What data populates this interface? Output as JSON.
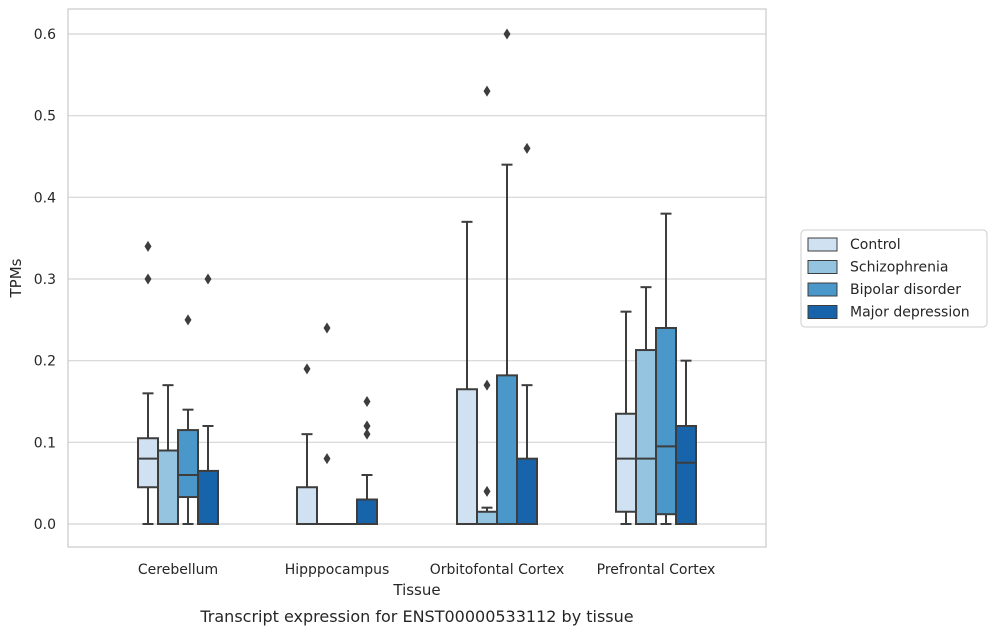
{
  "chart_data": {
    "type": "box",
    "caption": "Transcript expression for ENST00000533112 by tissue",
    "xlabel": "Tissue",
    "ylabel": "TPMs",
    "ylim": [
      -0.03,
      0.63
    ],
    "yticks": [
      "0.0",
      "0.1",
      "0.2",
      "0.3",
      "0.4",
      "0.5",
      "0.6"
    ],
    "grid": "horizontal",
    "legend_position": "right",
    "categories": [
      "Cerebellum",
      "Hipppocampus",
      "Orbitofontal Cortex",
      "Prefrontal Cortex"
    ],
    "series": [
      {
        "name": "Control",
        "color": "#d0e1f2",
        "boxes": [
          {
            "whislo": 0.0,
            "q1": 0.045,
            "med": 0.08,
            "q3": 0.105,
            "whishi": 0.16,
            "fliers": [
              0.3,
              0.34
            ]
          },
          {
            "whislo": 0.0,
            "q1": 0.0,
            "med": 0.0,
            "q3": 0.045,
            "whishi": 0.11,
            "fliers": [
              0.19
            ]
          },
          {
            "whislo": 0.0,
            "q1": 0.0,
            "med": 0.0,
            "q3": 0.165,
            "whishi": 0.37,
            "fliers": []
          },
          {
            "whislo": 0.0,
            "q1": 0.015,
            "med": 0.08,
            "q3": 0.135,
            "whishi": 0.26,
            "fliers": []
          }
        ]
      },
      {
        "name": "Schizophrenia",
        "color": "#94c4df",
        "boxes": [
          {
            "whislo": 0.0,
            "q1": 0.0,
            "med": 0.0,
            "q3": 0.09,
            "whishi": 0.17,
            "fliers": []
          },
          {
            "whislo": 0.0,
            "q1": 0.0,
            "med": 0.0,
            "q3": 0.0,
            "whishi": 0.0,
            "fliers": [
              0.08,
              0.24
            ]
          },
          {
            "whislo": 0.0,
            "q1": 0.0,
            "med": 0.0,
            "q3": 0.015,
            "whishi": 0.02,
            "fliers": [
              0.04,
              0.17,
              0.53
            ]
          },
          {
            "whislo": 0.0,
            "q1": 0.0,
            "med": 0.08,
            "q3": 0.213,
            "whishi": 0.29,
            "fliers": []
          }
        ]
      },
      {
        "name": "Bipolar disorder",
        "color": "#4a98c9",
        "boxes": [
          {
            "whislo": 0.0,
            "q1": 0.033,
            "med": 0.06,
            "q3": 0.115,
            "whishi": 0.14,
            "fliers": [
              0.25
            ]
          },
          {
            "whislo": 0.0,
            "q1": 0.0,
            "med": 0.0,
            "q3": 0.0,
            "whishi": 0.0,
            "fliers": []
          },
          {
            "whislo": 0.0,
            "q1": 0.0,
            "med": 0.0,
            "q3": 0.182,
            "whishi": 0.44,
            "fliers": [
              0.6
            ]
          },
          {
            "whislo": 0.0,
            "q1": 0.012,
            "med": 0.095,
            "q3": 0.24,
            "whishi": 0.38,
            "fliers": []
          }
        ]
      },
      {
        "name": "Major depression",
        "color": "#1764ab",
        "boxes": [
          {
            "whislo": 0.0,
            "q1": 0.0,
            "med": 0.0,
            "q3": 0.065,
            "whishi": 0.12,
            "fliers": [
              0.3
            ]
          },
          {
            "whislo": 0.0,
            "q1": 0.0,
            "med": 0.0,
            "q3": 0.03,
            "whishi": 0.06,
            "fliers": [
              0.11,
              0.12,
              0.15
            ]
          },
          {
            "whislo": 0.0,
            "q1": 0.0,
            "med": 0.0,
            "q3": 0.08,
            "whishi": 0.17,
            "fliers": [
              0.46
            ]
          },
          {
            "whislo": 0.0,
            "q1": 0.0,
            "med": 0.075,
            "q3": 0.12,
            "whishi": 0.2,
            "fliers": []
          }
        ]
      }
    ]
  }
}
